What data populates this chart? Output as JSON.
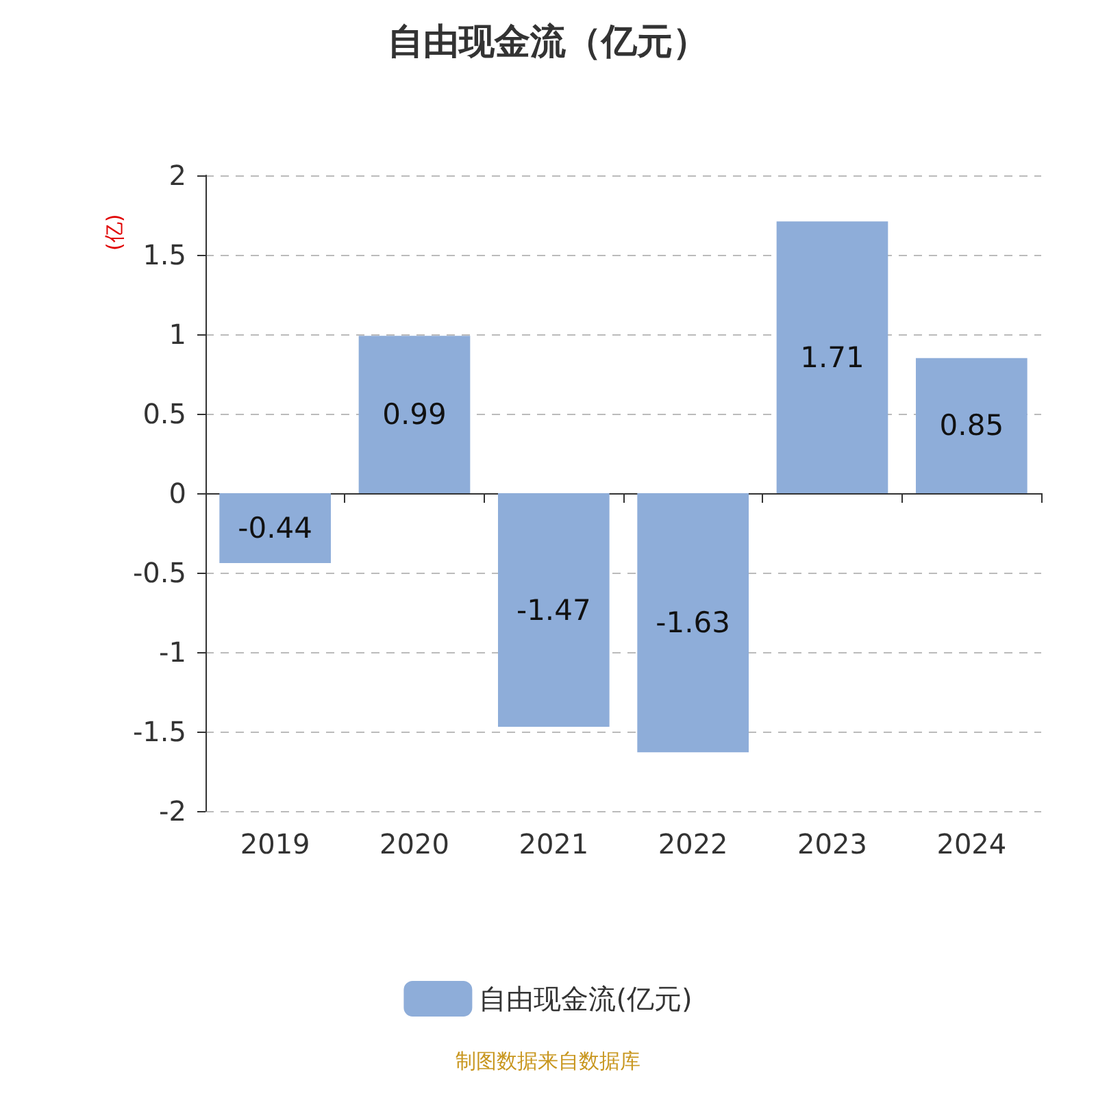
{
  "chart_data": {
    "type": "bar",
    "title": "自由现金流（亿元）",
    "ylabel": "(亿)",
    "categories": [
      "2019",
      "2020",
      "2021",
      "2022",
      "2023",
      "2024"
    ],
    "series": [
      {
        "name": "自由现金流(亿元)",
        "color": "#8eadd9",
        "values": [
          -0.44,
          0.99,
          -1.47,
          -1.63,
          1.71,
          0.85
        ]
      }
    ],
    "ylim": [
      -2,
      2
    ],
    "yticks": [
      -2,
      -1.5,
      -1,
      -0.5,
      0,
      0.5,
      1,
      1.5,
      2
    ],
    "grid": "y",
    "legend": "bottom",
    "data_labels": true,
    "annotations": [
      "制图数据来自数据库"
    ]
  }
}
